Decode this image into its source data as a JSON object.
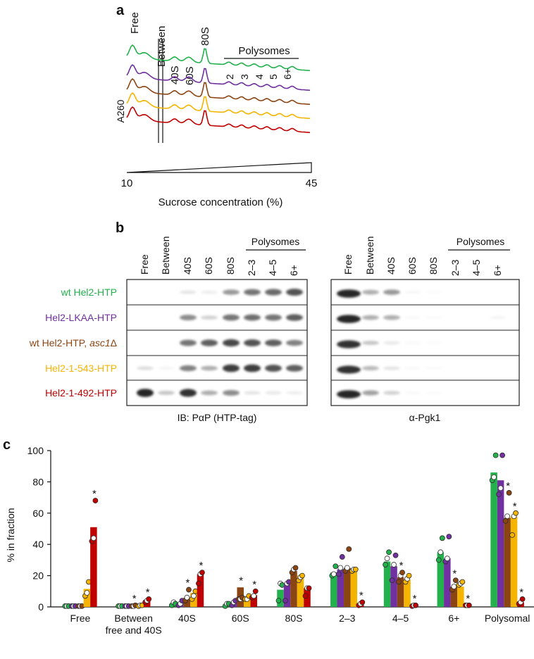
{
  "panel_labels": {
    "a": "a",
    "b": "b",
    "c": "c"
  },
  "panel_a": {
    "fraction_labels": [
      "Free",
      "Between",
      "40S",
      "60S",
      "80S"
    ],
    "polysomes_label": "Polysomes",
    "polysome_numbers": [
      "2",
      "3",
      "4",
      "5",
      "6+"
    ],
    "y_label": "A260",
    "x_min": "10",
    "x_max": "45",
    "x_label": "Sucrose concentration  (%)"
  },
  "panel_b": {
    "lane_labels": [
      "Free",
      "Between",
      "40S",
      "60S",
      "80S",
      "2–3",
      "4–5",
      "6+"
    ],
    "polysomes_label": "Polysomes",
    "strains": [
      {
        "label": "wt Hel2-HTP",
        "color": "#22b14c",
        "italic": ""
      },
      {
        "label": "Hel2-LKAA-HTP",
        "color": "#7030a0",
        "italic": ""
      },
      {
        "label": "wt Hel2-HTP, ",
        "color": "#8b4513",
        "italic": "asc1",
        "suffix": "Δ"
      },
      {
        "label": "Hel2-1-543-HTP",
        "color": "#f5b400",
        "italic": ""
      },
      {
        "label": "Hel2-1-492-HTP",
        "color": "#c00000",
        "italic": ""
      }
    ],
    "left_caption": "IB: PαP (HTP-tag)",
    "right_caption": "α-Pgk1"
  },
  "chart_data": {
    "type": "bar",
    "title": "",
    "ylabel": "% in fraction",
    "ylim": [
      0,
      100
    ],
    "yticks": [
      "0",
      "20",
      "40",
      "60",
      "80",
      "100"
    ],
    "categories": [
      "Free",
      "Between\nfree and 40S",
      "40S",
      "60S",
      "80S",
      "2–3",
      "4–5",
      "6+",
      "Polysomal"
    ],
    "category_lines": [
      [
        "Free"
      ],
      [
        "Between",
        "free and 40S"
      ],
      [
        "40S"
      ],
      [
        "60S"
      ],
      [
        "80S"
      ],
      [
        "2–3"
      ],
      [
        "4–5"
      ],
      [
        "6+"
      ],
      [
        "Polysomal"
      ]
    ],
    "series": [
      {
        "name": "wt Hel2-HTP",
        "color": "#22b14c",
        "values": [
          0.5,
          0.5,
          2,
          1.5,
          11,
          22,
          29,
          35,
          86
        ],
        "points": [
          [
            0.5,
            0.5,
            0.5
          ],
          [
            0.5,
            0.5,
            0.5
          ],
          [
            1,
            3,
            2
          ],
          [
            0.5,
            2,
            2
          ],
          [
            4,
            15,
            14
          ],
          [
            20,
            21,
            26
          ],
          [
            27,
            31,
            35
          ],
          [
            30,
            35,
            44
          ],
          [
            81,
            83,
            97
          ]
        ],
        "sig": [
          false,
          false,
          false,
          false,
          false,
          false,
          false,
          false,
          false
        ]
      },
      {
        "name": "Hel2-LKAA-HTP",
        "color": "#7030a0",
        "values": [
          0.5,
          0.5,
          2.5,
          2.5,
          14.5,
          24,
          26,
          31,
          81
        ],
        "points": [
          [
            0.5,
            0.5,
            0.5
          ],
          [
            0.5,
            0.5,
            0.5
          ],
          [
            1,
            2,
            4
          ],
          [
            1,
            3,
            4
          ],
          [
            4,
            15,
            16
          ],
          [
            21,
            25,
            32
          ],
          [
            17,
            27,
            33
          ],
          [
            29,
            31,
            45
          ],
          [
            72,
            76,
            97
          ]
        ],
        "sig": [
          false,
          false,
          false,
          false,
          false,
          false,
          false,
          false,
          false
        ]
      },
      {
        "name": "wt Hel2-HTP, asc1Δ",
        "color": "#8b4513",
        "values": [
          0.5,
          0.5,
          6,
          12.5,
          23,
          25,
          19,
          13,
          57
        ],
        "points": [
          [
            0.5,
            0.5,
            0.5
          ],
          [
            0.5,
            0.5,
            1
          ],
          [
            4,
            6,
            11
          ],
          [
            5,
            5,
            6
          ],
          [
            22,
            24,
            25
          ],
          [
            23,
            25,
            37
          ],
          [
            16,
            20,
            22
          ],
          [
            11,
            13,
            17
          ],
          [
            55,
            58,
            73
          ]
        ],
        "sig": [
          false,
          true,
          true,
          true,
          false,
          false,
          true,
          true,
          true
        ]
      },
      {
        "name": "Hel2-1-543-HTP",
        "color": "#f5b400",
        "values": [
          11.5,
          1,
          9,
          5,
          20,
          24,
          17.5,
          13,
          58
        ],
        "points": [
          [
            7,
            9,
            16
          ],
          [
            0.5,
            1,
            1
          ],
          [
            5,
            7,
            10
          ],
          [
            5,
            5,
            7
          ],
          [
            17,
            19,
            20
          ],
          [
            23,
            24,
            24
          ],
          [
            16,
            18,
            20
          ],
          [
            14,
            15,
            16
          ],
          [
            46,
            58,
            60
          ]
        ],
        "sig": [
          false,
          false,
          false,
          false,
          false,
          false,
          false,
          false,
          true
        ]
      },
      {
        "name": "Hel2-1-492-HTP",
        "color": "#c00000",
        "values": [
          51,
          4.5,
          21,
          7.5,
          12,
          1.5,
          1,
          1,
          3
        ],
        "points": [
          [
            42,
            44,
            68
          ],
          [
            3,
            4,
            5
          ],
          [
            15,
            21,
            22
          ],
          [
            6,
            7,
            10
          ],
          [
            7,
            12,
            12
          ],
          [
            1,
            2,
            3
          ],
          [
            0.5,
            1,
            1
          ],
          [
            1,
            1,
            1
          ],
          [
            2,
            3,
            5
          ]
        ],
        "sig": [
          true,
          true,
          true,
          true,
          false,
          true,
          true,
          true,
          true
        ]
      }
    ]
  }
}
